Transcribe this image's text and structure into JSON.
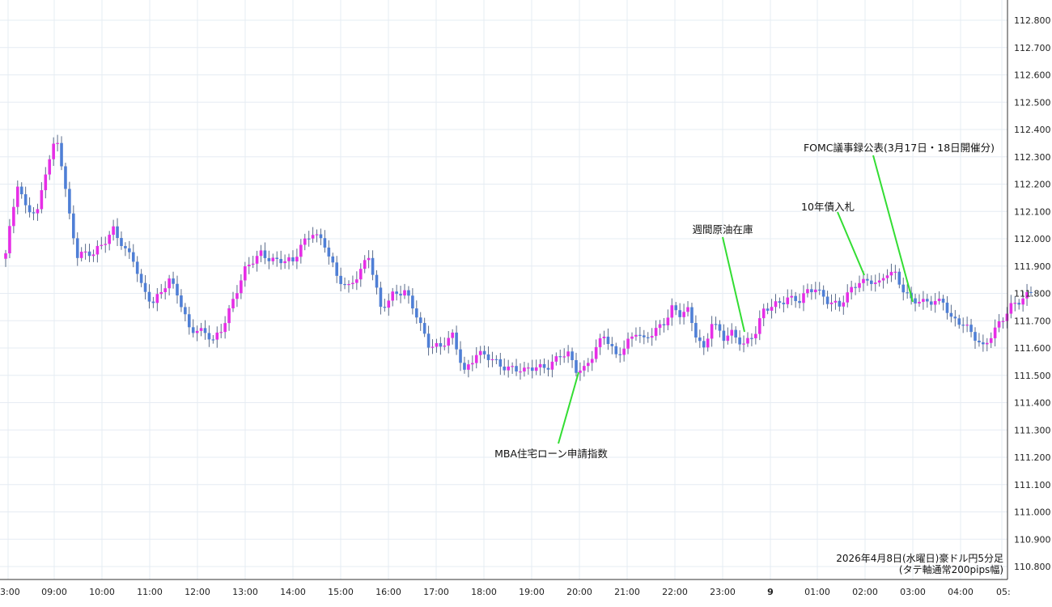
{
  "chart_data": {
    "type": "candlestick",
    "title": "",
    "xlabel": "",
    "ylabel": "",
    "ylim": [
      110.75,
      112.85
    ],
    "y_ticks": [
      "112.800",
      "112.700",
      "112.600",
      "112.500",
      "112.400",
      "112.300",
      "112.200",
      "112.100",
      "112.000",
      "111.900",
      "111.800",
      "111.700",
      "111.600",
      "111.500",
      "111.400",
      "111.300",
      "111.200",
      "111.100",
      "111.000",
      "110.900",
      "110.800"
    ],
    "x_ticks": [
      "3:00",
      "09:00",
      "10:00",
      "11:00",
      "12:00",
      "13:00",
      "14:00",
      "15:00",
      "16:00",
      "17:00",
      "18:00",
      "19:00",
      "20:00",
      "21:00",
      "22:00",
      "23:00",
      "9",
      "01:00",
      "02:00",
      "03:00",
      "04:00",
      "05:"
    ],
    "grid": true,
    "colors": {
      "up": "#e62ee6",
      "down": "#4f7fd6",
      "annotation_line": "#33dd33",
      "grid": "#e6ecf3"
    },
    "anchors": [
      [
        0,
        111.94
      ],
      [
        3,
        112.2
      ],
      [
        5,
        112.12
      ],
      [
        8,
        112.1
      ],
      [
        10,
        112.24
      ],
      [
        12,
        112.33
      ],
      [
        13,
        112.35
      ],
      [
        14,
        112.28
      ],
      [
        16,
        112.09
      ],
      [
        18,
        111.94
      ],
      [
        22,
        111.94
      ],
      [
        24,
        111.98
      ],
      [
        27,
        112.04
      ],
      [
        30,
        111.95
      ],
      [
        32,
        111.92
      ],
      [
        34,
        111.83
      ],
      [
        37,
        111.77
      ],
      [
        41,
        111.84
      ],
      [
        43,
        111.8
      ],
      [
        46,
        111.68
      ],
      [
        50,
        111.65
      ],
      [
        52,
        111.62
      ],
      [
        54,
        111.67
      ],
      [
        57,
        111.78
      ],
      [
        60,
        111.88
      ],
      [
        64,
        111.95
      ],
      [
        68,
        111.92
      ],
      [
        72,
        111.91
      ],
      [
        74,
        111.98
      ],
      [
        77,
        112.03
      ],
      [
        80,
        111.97
      ],
      [
        83,
        111.86
      ],
      [
        86,
        111.83
      ],
      [
        89,
        111.88
      ],
      [
        91,
        111.93
      ],
      [
        94,
        111.75
      ],
      [
        97,
        111.8
      ],
      [
        100,
        111.8
      ],
      [
        103,
        111.72
      ],
      [
        106,
        111.62
      ],
      [
        109,
        111.6
      ],
      [
        112,
        111.64
      ],
      [
        115,
        111.52
      ],
      [
        118,
        111.58
      ],
      [
        121,
        111.56
      ],
      [
        124,
        111.54
      ],
      [
        127,
        111.53
      ],
      [
        130,
        111.51
      ],
      [
        133,
        111.53
      ],
      [
        136,
        111.54
      ],
      [
        139,
        111.57
      ],
      [
        141,
        111.57
      ],
      [
        143,
        111.52
      ],
      [
        145,
        111.53
      ],
      [
        148,
        111.6
      ],
      [
        150,
        111.64
      ],
      [
        153,
        111.57
      ],
      [
        156,
        111.63
      ],
      [
        158,
        111.66
      ],
      [
        160,
        111.62
      ],
      [
        162,
        111.65
      ],
      [
        165,
        111.7
      ],
      [
        167,
        111.75
      ],
      [
        169,
        111.72
      ],
      [
        171,
        111.73
      ],
      [
        173,
        111.65
      ],
      [
        175,
        111.6
      ],
      [
        177,
        111.7
      ],
      [
        180,
        111.63
      ],
      [
        182,
        111.65
      ],
      [
        185,
        111.62
      ],
      [
        188,
        111.66
      ],
      [
        190,
        111.73
      ],
      [
        193,
        111.76
      ],
      [
        196,
        111.79
      ],
      [
        199,
        111.77
      ],
      [
        201,
        111.8
      ],
      [
        203,
        111.82
      ],
      [
        206,
        111.78
      ],
      [
        209,
        111.75
      ],
      [
        212,
        111.81
      ],
      [
        214,
        111.85
      ],
      [
        217,
        111.85
      ],
      [
        219,
        111.83
      ],
      [
        221,
        111.87
      ],
      [
        223,
        111.87
      ],
      [
        225,
        111.82
      ],
      [
        227,
        111.78
      ],
      [
        230,
        111.76
      ],
      [
        233,
        111.77
      ],
      [
        235,
        111.78
      ],
      [
        237,
        111.71
      ],
      [
        240,
        111.68
      ],
      [
        243,
        111.64
      ],
      [
        245,
        111.61
      ],
      [
        247,
        111.65
      ],
      [
        250,
        111.7
      ],
      [
        252,
        111.75
      ],
      [
        255,
        111.79
      ],
      [
        257,
        111.81
      ]
    ],
    "annotations": [
      {
        "text": "MBA住宅ローン申請指数",
        "time": "20:00"
      },
      {
        "text": "週間原油在庫",
        "time": "23:30"
      },
      {
        "text": "10年債入札",
        "time": "02:00"
      },
      {
        "text": "FOMC議事録公表(3月17日・18日開催分)",
        "time": "03:00"
      }
    ],
    "info": {
      "line1": "2026年4月8日(水曜日)豪ドル円5分足",
      "line2": "(タテ軸通常200pips幅)"
    }
  }
}
